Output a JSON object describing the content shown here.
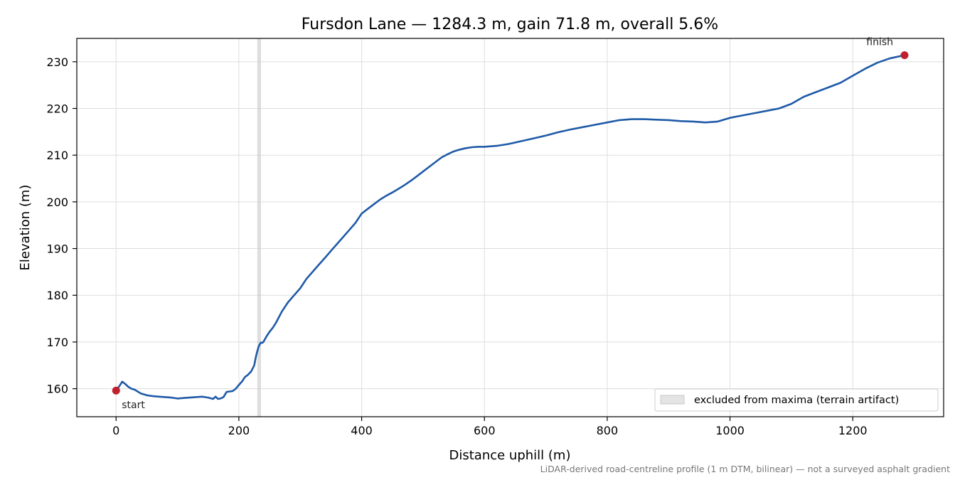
{
  "chart_data": {
    "type": "line",
    "title": "Fursdon Lane — 1284.3 m, gain 71.8 m, overall 5.6%",
    "xlabel": "Distance uphill (m)",
    "ylabel": "Elevation (m)",
    "xlim": [
      -64,
      1348
    ],
    "ylim": [
      154,
      235
    ],
    "xticks": [
      0,
      200,
      400,
      600,
      800,
      1000,
      1200
    ],
    "yticks": [
      160,
      170,
      180,
      190,
      200,
      210,
      220,
      230
    ],
    "xtick_labels": [
      "0",
      "200",
      "400",
      "600",
      "800",
      "1000",
      "1200"
    ],
    "ytick_labels": [
      "160",
      "170",
      "180",
      "190",
      "200",
      "210",
      "220",
      "230"
    ],
    "grid": true,
    "series": [
      {
        "color": "#1f5aa8",
        "x": [
          0,
          5,
          10,
          15,
          20,
          25,
          30,
          35,
          40,
          50,
          60,
          70,
          80,
          90,
          100,
          110,
          120,
          130,
          140,
          150,
          158,
          162,
          166,
          170,
          175,
          180,
          185,
          190,
          195,
          200,
          205,
          210,
          215,
          220,
          225,
          228,
          230,
          232,
          234,
          236,
          238,
          240,
          245,
          250,
          255,
          260,
          270,
          280,
          290,
          300,
          310,
          320,
          330,
          340,
          350,
          360,
          370,
          380,
          390,
          400,
          410,
          420,
          430,
          440,
          450,
          460,
          470,
          480,
          490,
          500,
          510,
          520,
          530,
          540,
          550,
          560,
          570,
          580,
          590,
          600,
          620,
          640,
          660,
          680,
          700,
          720,
          740,
          760,
          780,
          800,
          820,
          840,
          860,
          880,
          900,
          920,
          940,
          960,
          980,
          1000,
          1020,
          1040,
          1060,
          1080,
          1100,
          1120,
          1140,
          1160,
          1180,
          1200,
          1220,
          1240,
          1260,
          1284.3
        ],
        "y": [
          159.6,
          160.5,
          161.5,
          161.0,
          160.4,
          160.0,
          159.8,
          159.4,
          159.0,
          158.6,
          158.4,
          158.3,
          158.2,
          158.1,
          157.9,
          158.0,
          158.1,
          158.2,
          158.3,
          158.1,
          157.8,
          158.3,
          157.8,
          157.9,
          158.2,
          159.3,
          159.4,
          159.5,
          160.0,
          160.8,
          161.5,
          162.5,
          163.0,
          163.7,
          165.0,
          167.0,
          168.0,
          168.9,
          169.5,
          169.9,
          169.8,
          170.0,
          171.2,
          172.2,
          173.0,
          174.0,
          176.5,
          178.5,
          180.0,
          181.5,
          183.5,
          185.0,
          186.5,
          188.0,
          189.5,
          191.0,
          192.5,
          194.0,
          195.5,
          197.5,
          198.5,
          199.5,
          200.5,
          201.3,
          202.0,
          202.8,
          203.6,
          204.5,
          205.5,
          206.5,
          207.5,
          208.5,
          209.5,
          210.2,
          210.8,
          211.2,
          211.5,
          211.7,
          211.8,
          211.8,
          212.0,
          212.4,
          213.0,
          213.6,
          214.2,
          214.9,
          215.5,
          216.0,
          216.5,
          217.0,
          217.5,
          217.7,
          217.7,
          217.6,
          217.5,
          217.3,
          217.2,
          217.0,
          217.2,
          218.0,
          218.5,
          219.0,
          219.5,
          220.0,
          221.0,
          222.5,
          223.5,
          224.5,
          225.5,
          227.0,
          228.5,
          229.8,
          230.7,
          231.4
        ]
      }
    ],
    "markers": [
      {
        "x": 0,
        "y": 159.6,
        "label": "start",
        "color": "#c0202c"
      },
      {
        "x": 1284.3,
        "y": 231.4,
        "label": "finish",
        "color": "#c0202c"
      }
    ],
    "excluded_band": {
      "x": [
        230,
        236
      ],
      "color": "#c8c8c8"
    },
    "legend": {
      "position": "lower right",
      "entries": [
        "excluded from maxima (terrain artifact)"
      ]
    },
    "footnote": "LiDAR-derived road-centreline profile (1 m DTM, bilinear) — not a surveyed asphalt gradient"
  }
}
